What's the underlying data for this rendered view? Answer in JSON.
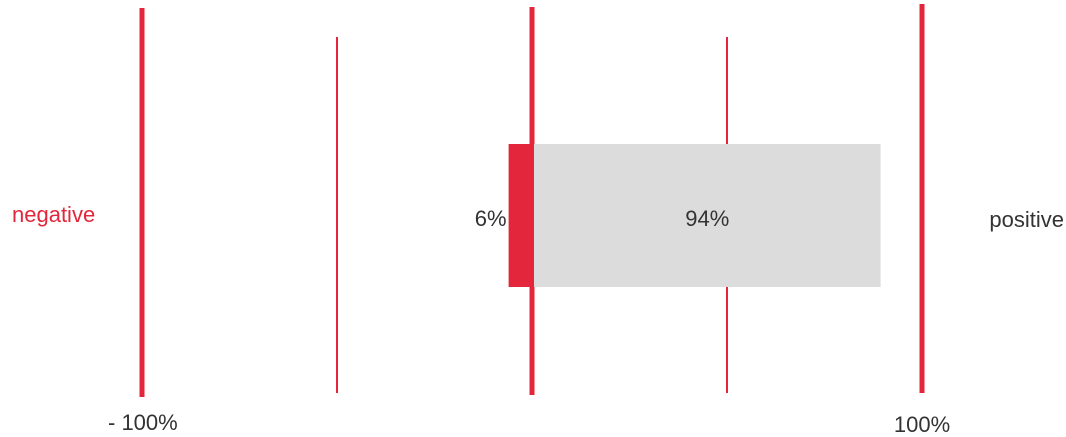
{
  "chart_data": {
    "type": "bar",
    "orientation": "horizontal",
    "stacked": "diverging",
    "xlim": [
      -100,
      100
    ],
    "x_ticks": [
      -100,
      -50,
      0,
      50,
      100
    ],
    "tick_labels": [
      "- 100%",
      "100%"
    ],
    "category_labels": {
      "negative": "negative",
      "positive": "positive"
    },
    "series": [
      {
        "name": "negative",
        "value": -6,
        "label": "6%"
      },
      {
        "name": "positive",
        "value": 94,
        "label": "94%"
      }
    ],
    "grid": true
  },
  "colors": {
    "negative": "#e3263b",
    "positive": "#dcdcdc",
    "gridline": "#e3263b",
    "negative_text": "#e3263b",
    "text": "#333333"
  }
}
